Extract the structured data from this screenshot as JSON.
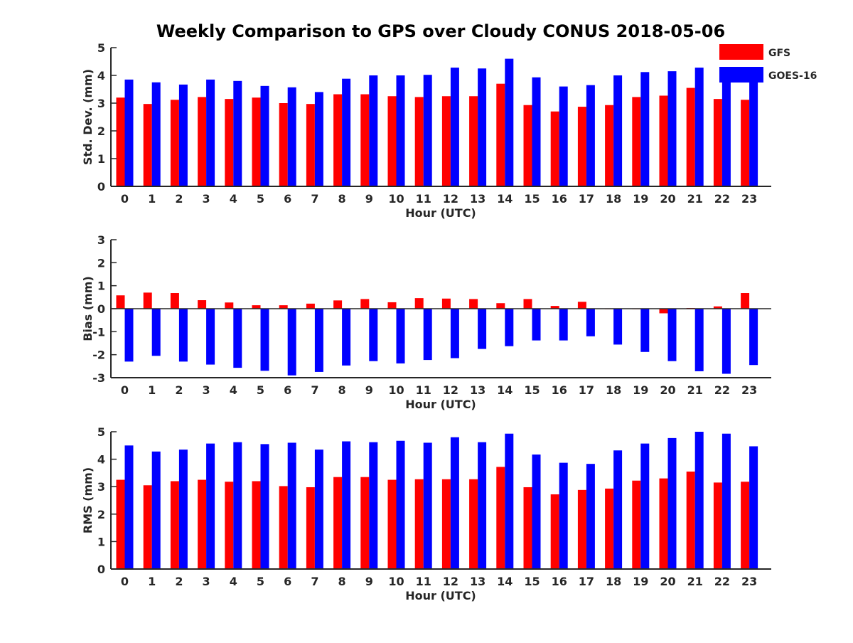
{
  "title": "Weekly Comparison to GPS over Cloudy CONUS 2018-05-06",
  "legend": [
    {
      "label": "GFS",
      "color": "#ff0000"
    },
    {
      "label": "GOES-16",
      "color": "#0000ff"
    }
  ],
  "chart_data": [
    {
      "type": "bar",
      "xlabel": "Hour (UTC)",
      "ylabel": "Std. Dev. (mm)",
      "ylim": [
        0,
        5
      ],
      "yticks": [
        0,
        1,
        2,
        3,
        4,
        5
      ],
      "categories": [
        "0",
        "1",
        "2",
        "3",
        "4",
        "5",
        "6",
        "7",
        "8",
        "9",
        "10",
        "11",
        "12",
        "13",
        "14",
        "15",
        "16",
        "17",
        "18",
        "19",
        "20",
        "21",
        "22",
        "23"
      ],
      "series": [
        {
          "name": "GFS",
          "color": "#ff0000",
          "values": [
            3.2,
            2.97,
            3.12,
            3.22,
            3.15,
            3.2,
            3.0,
            2.97,
            3.32,
            3.32,
            3.25,
            3.22,
            3.25,
            3.25,
            3.7,
            2.93,
            2.7,
            2.87,
            2.93,
            3.22,
            3.27,
            3.55,
            3.15,
            3.12
          ]
        },
        {
          "name": "GOES-16",
          "color": "#0000ff",
          "values": [
            3.85,
            3.75,
            3.67,
            3.85,
            3.8,
            3.62,
            3.57,
            3.4,
            3.88,
            4.0,
            4.0,
            4.02,
            4.28,
            4.25,
            4.6,
            3.93,
            3.6,
            3.65,
            4.0,
            4.12,
            4.15,
            4.28,
            4.0,
            3.88
          ]
        }
      ]
    },
    {
      "type": "bar",
      "xlabel": "Hour (UTC)",
      "ylabel": "Bias (mm)",
      "ylim": [
        -3,
        3
      ],
      "yticks": [
        -3,
        -2,
        -1,
        0,
        1,
        2,
        3
      ],
      "categories": [
        "0",
        "1",
        "2",
        "3",
        "4",
        "5",
        "6",
        "7",
        "8",
        "9",
        "10",
        "11",
        "12",
        "13",
        "14",
        "15",
        "16",
        "17",
        "18",
        "19",
        "20",
        "21",
        "22",
        "23"
      ],
      "series": [
        {
          "name": "GFS",
          "color": "#ff0000",
          "values": [
            0.58,
            0.7,
            0.68,
            0.37,
            0.27,
            0.15,
            0.15,
            0.22,
            0.36,
            0.42,
            0.28,
            0.46,
            0.44,
            0.42,
            0.24,
            0.42,
            0.12,
            0.3,
            -0.02,
            -0.02,
            -0.2,
            0.03,
            0.1,
            0.68
          ]
        },
        {
          "name": "GOES-16",
          "color": "#0000ff",
          "values": [
            -2.3,
            -2.05,
            -2.3,
            -2.43,
            -2.57,
            -2.7,
            -2.9,
            -2.75,
            -2.47,
            -2.28,
            -2.38,
            -2.23,
            -2.15,
            -1.75,
            -1.63,
            -1.38,
            -1.38,
            -1.2,
            -1.56,
            -1.88,
            -2.28,
            -2.72,
            -2.83,
            -2.45
          ]
        }
      ]
    },
    {
      "type": "bar",
      "xlabel": "Hour (UTC)",
      "ylabel": "RMS (mm)",
      "ylim": [
        0,
        5
      ],
      "yticks": [
        0,
        1,
        2,
        3,
        4,
        5
      ],
      "categories": [
        "0",
        "1",
        "2",
        "3",
        "4",
        "5",
        "6",
        "7",
        "8",
        "9",
        "10",
        "11",
        "12",
        "13",
        "14",
        "15",
        "16",
        "17",
        "18",
        "19",
        "20",
        "21",
        "22",
        "23"
      ],
      "series": [
        {
          "name": "GFS",
          "color": "#ff0000",
          "values": [
            3.25,
            3.05,
            3.2,
            3.25,
            3.18,
            3.2,
            3.02,
            2.98,
            3.35,
            3.35,
            3.25,
            3.27,
            3.27,
            3.27,
            3.72,
            2.98,
            2.72,
            2.88,
            2.93,
            3.22,
            3.3,
            3.55,
            3.15,
            3.18
          ]
        },
        {
          "name": "GOES-16",
          "color": "#0000ff",
          "values": [
            4.5,
            4.28,
            4.35,
            4.57,
            4.62,
            4.55,
            4.6,
            4.35,
            4.65,
            4.62,
            4.67,
            4.6,
            4.8,
            4.62,
            4.93,
            4.17,
            3.87,
            3.83,
            4.32,
            4.57,
            4.77,
            5.0,
            4.93,
            4.47
          ]
        }
      ]
    }
  ]
}
